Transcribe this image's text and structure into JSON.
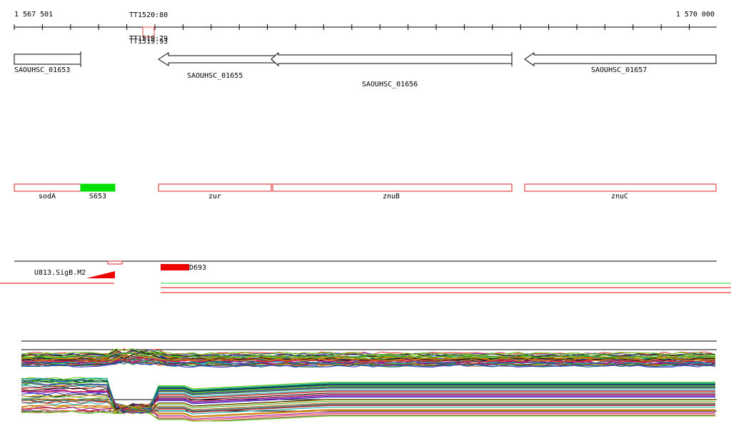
{
  "ruler": {
    "start": "1 567 501",
    "end": "1 570 000"
  },
  "terminators": [
    "TT1520:80",
    "TT1519:79",
    "TT1519:93"
  ],
  "genes": [
    "SAOUHSC_01653",
    "SAOUHSC_01655",
    "SAOUHSC_01656",
    "SAOUHSC_01657"
  ],
  "features": [
    "sodA",
    "S653",
    "zur",
    "znuB",
    "znuC"
  ],
  "regulatory": [
    "U813.SigB.M2",
    "D693"
  ]
}
